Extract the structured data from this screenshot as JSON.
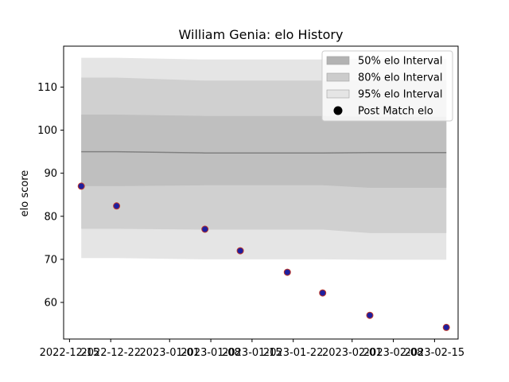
{
  "chart_data": {
    "type": "line",
    "title": "William Genia: elo History",
    "xlabel": "",
    "ylabel": "elo score",
    "x_ticks": [
      "2022-12-15",
      "2022-12-22",
      "2023-01-01",
      "2023-01-08",
      "2023-01-15",
      "2023-01-22",
      "2023-02-01",
      "2023-02-08",
      "2023-02-15"
    ],
    "y_ticks": [
      60,
      70,
      80,
      90,
      100,
      110
    ],
    "ylim": [
      51.5,
      119.5
    ],
    "xlim": [
      "2022-12-14",
      "2023-02-19"
    ],
    "grid": false,
    "legend_position": "top-right",
    "legend": [
      {
        "label": "50% elo Interval",
        "kind": "band",
        "color": "#b3b3b3"
      },
      {
        "label": "80% elo Interval",
        "kind": "band",
        "color": "#cccccc"
      },
      {
        "label": "95% elo Interval",
        "kind": "band",
        "color": "#e5e5e5"
      },
      {
        "label": "Post Match elo",
        "kind": "marker",
        "color": "#000000"
      }
    ],
    "x": [
      "2022-12-17",
      "2022-12-23",
      "2023-01-07",
      "2023-01-13",
      "2023-01-21",
      "2023-01-27",
      "2023-02-04",
      "2023-02-17"
    ],
    "series": [
      {
        "name": "Post Match elo",
        "kind": "scatter",
        "values": [
          87.0,
          82.4,
          77.0,
          72.0,
          67.0,
          62.2,
          57.0,
          54.2
        ],
        "fill": "#1f1f9e",
        "edge": "#c0392b"
      }
    ],
    "rating_line": [
      95.0,
      95.0,
      94.7,
      94.7,
      94.7,
      94.7,
      94.8,
      94.8
    ],
    "bands": [
      {
        "label": "95% elo Interval",
        "color": "#e5e5e5",
        "upper": [
          116.8,
          116.8,
          116.4,
          116.4,
          116.4,
          116.4,
          116.6,
          116.6
        ],
        "lower": [
          70.3,
          70.3,
          70.0,
          70.0,
          70.0,
          70.0,
          69.9,
          69.9
        ]
      },
      {
        "label": "80% elo Interval",
        "color": "#d0d0d0",
        "upper": [
          112.2,
          112.2,
          111.5,
          111.5,
          111.5,
          111.5,
          111.6,
          111.6
        ],
        "lower": [
          77.1,
          77.1,
          76.9,
          76.9,
          76.9,
          76.9,
          76.1,
          76.1
        ]
      },
      {
        "label": "50% elo Interval",
        "color": "#bfbfbf",
        "upper": [
          103.6,
          103.6,
          103.3,
          103.3,
          103.3,
          103.3,
          103.1,
          103.1
        ],
        "lower": [
          87.0,
          87.0,
          87.2,
          87.2,
          87.2,
          87.2,
          86.6,
          86.6
        ]
      }
    ],
    "colors": {
      "line": "#808080",
      "axis": "#000000"
    }
  }
}
